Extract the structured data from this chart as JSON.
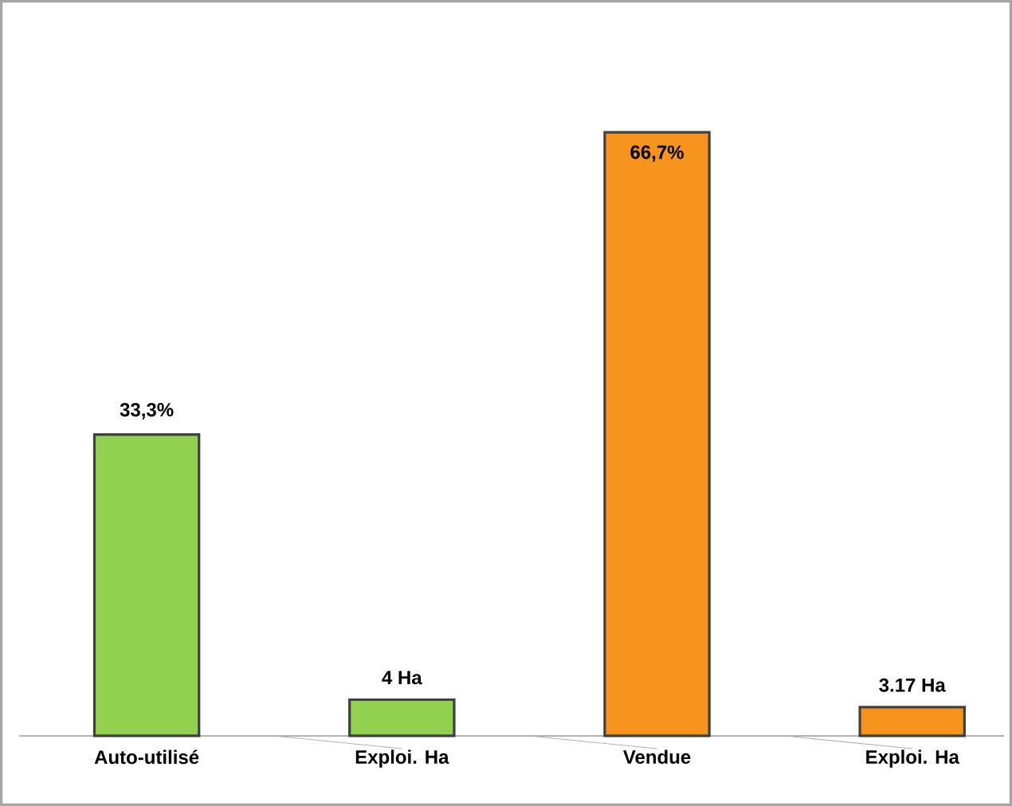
{
  "chart_data": {
    "type": "bar",
    "categories": [
      "Auto-utilisé",
      "Exploi. Ha",
      "Vendue",
      "Exploi. Ha"
    ],
    "values": [
      33.3,
      4,
      66.7,
      3.17
    ],
    "colors": [
      "#92d050",
      "#92d050",
      "#f7941d",
      "#f7941d"
    ],
    "value_labels": [
      "33,3%",
      "4 Ha",
      "66,7%",
      "3.17 Ha"
    ]
  }
}
